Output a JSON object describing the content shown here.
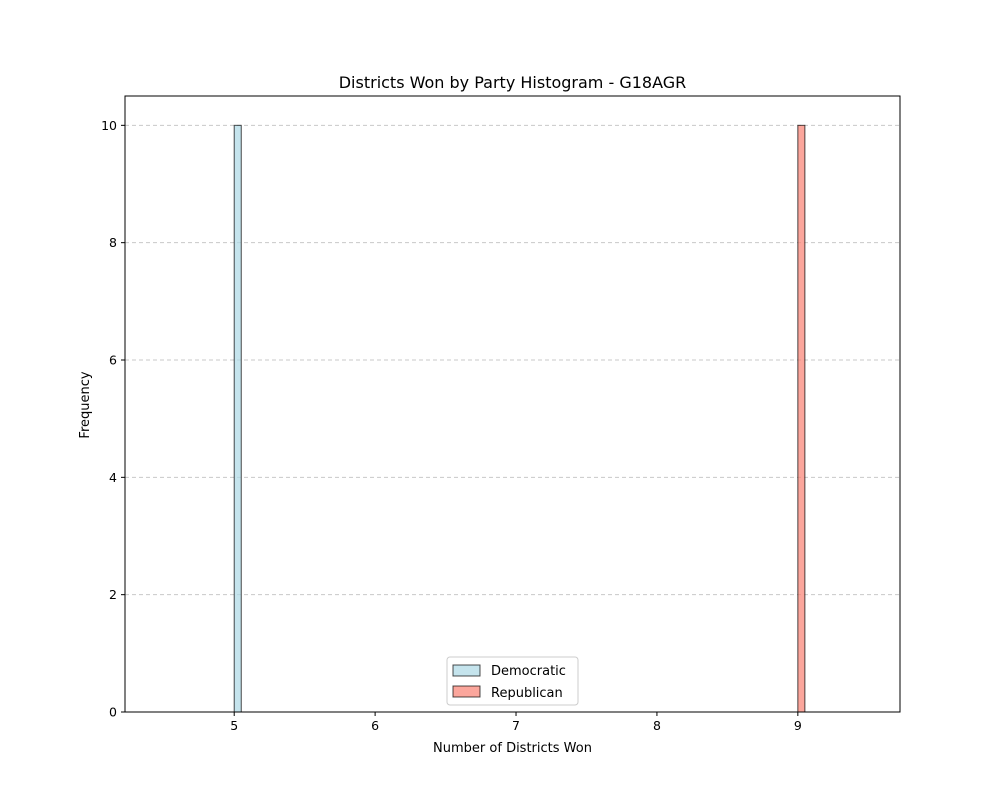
{
  "chart_data": {
    "type": "bar",
    "title": "Districts Won by Party Histogram - G18AGR",
    "xlabel": "Number of Districts Won",
    "ylabel": "Frequency",
    "xlim": [
      4.225,
      9.725
    ],
    "ylim": [
      0,
      10.5
    ],
    "x_ticks": [
      5,
      6,
      7,
      8,
      9
    ],
    "y_ticks": [
      0,
      2,
      4,
      6,
      8,
      10
    ],
    "grid": {
      "axis": "y",
      "style": "dashed"
    },
    "legend": {
      "placement": "lower center"
    },
    "series": [
      {
        "name": "Democratic",
        "color": "#add8e6",
        "edge_color": "#000000",
        "range": [
          4.5,
          5.5
        ],
        "bins": 20,
        "values": [
          0,
          0,
          0,
          0,
          0,
          0,
          0,
          0,
          0,
          0,
          10,
          0,
          0,
          0,
          0,
          0,
          0,
          0,
          0,
          0
        ]
      },
      {
        "name": "Republican",
        "color": "#fa8072",
        "edge_color": "#000000",
        "range": [
          8.5,
          9.5
        ],
        "bins": 20,
        "values": [
          0,
          0,
          0,
          0,
          0,
          0,
          0,
          0,
          0,
          0,
          10,
          0,
          0,
          0,
          0,
          0,
          0,
          0,
          0,
          0
        ]
      }
    ]
  }
}
